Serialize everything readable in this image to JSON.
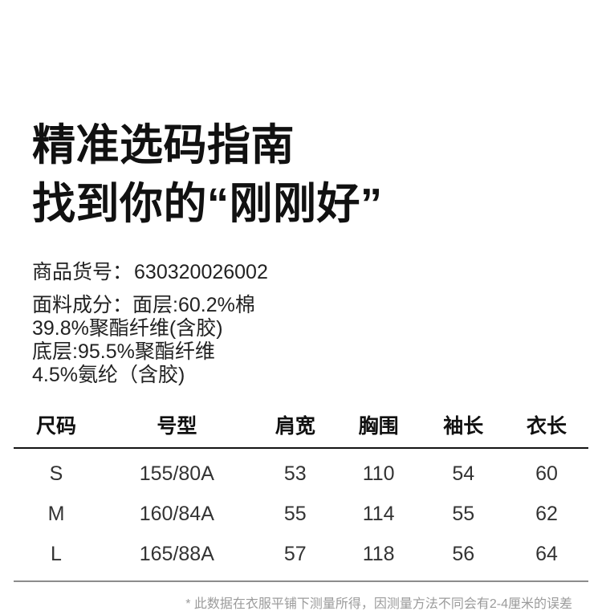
{
  "page": {
    "title_line1": "精准选码指南",
    "title_line2": "找到你的“刚刚好”",
    "product_code_label": "商品货号：",
    "product_code_value": "630320026002",
    "fabric_lines": [
      "面料成分：面层:60.2%棉",
      "39.8%聚酯纤维(含胶)",
      "底层:95.5%聚酯纤维",
      "4.5%氨纶（含胶)"
    ],
    "footnote": "* 此数据在衣服平铺下测量所得，因测量方法不同会有2-4厘米的误差"
  },
  "size_table": {
    "headers": [
      "尺码",
      "号型",
      "肩宽",
      "胸围",
      "袖长",
      "衣长"
    ],
    "rows": [
      [
        "S",
        "155/80A",
        "53",
        "110",
        "54",
        "60"
      ],
      [
        "M",
        "160/84A",
        "55",
        "114",
        "55",
        "62"
      ],
      [
        "L",
        "165/88A",
        "57",
        "118",
        "56",
        "64"
      ]
    ]
  },
  "colors": {
    "background": "#ffffff",
    "title_text": "#111111",
    "body_text": "#222222",
    "table_header_line": "#141414",
    "table_bottom_line": "#8c8c8c",
    "footnote_text": "#9b9b9b"
  }
}
